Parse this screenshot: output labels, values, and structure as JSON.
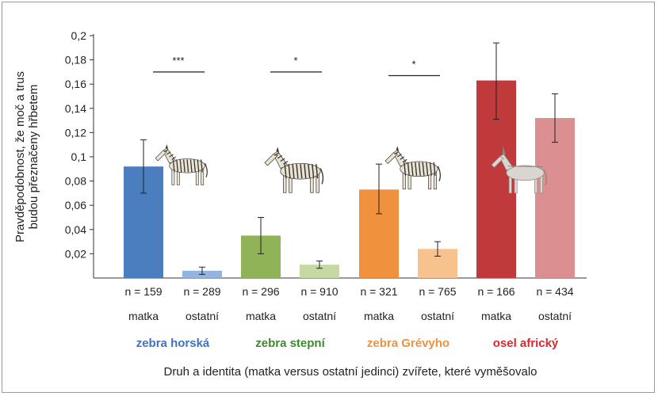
{
  "chart_data": {
    "type": "bar",
    "ylabel_line1": "Pravděpodobnost, že moč a trus",
    "ylabel_line2": "budou přeznačeny hřbetem",
    "xlabel": "Druh a identita (matka versus ostatní jedinci) zvířete, které vyměšovalo",
    "ylim": [
      0,
      0.2
    ],
    "yticks": [
      "0,02",
      "0,04",
      "0,06",
      "0,08",
      "0,1",
      "0,12",
      "0,14",
      "0,16",
      "0,18",
      "0,2"
    ],
    "ytick_values": [
      0.02,
      0.04,
      0.06,
      0.08,
      0.1,
      0.12,
      0.14,
      0.16,
      0.18,
      0.2
    ],
    "bars": [
      {
        "n": "n = 159",
        "label": "matka",
        "value": 0.092,
        "err_low": 0.07,
        "err_high": 0.114,
        "color": "#4a7ebf"
      },
      {
        "n": "n = 289",
        "label": "ostatní",
        "value": 0.006,
        "err_low": 0.003,
        "err_high": 0.009,
        "color": "#93b3e0"
      },
      {
        "n": "n = 296",
        "label": "matka",
        "value": 0.035,
        "err_low": 0.02,
        "err_high": 0.05,
        "color": "#8fb356"
      },
      {
        "n": "n = 910",
        "label": "ostatní",
        "value": 0.011,
        "err_low": 0.008,
        "err_high": 0.014,
        "color": "#c6d9a2"
      },
      {
        "n": "n = 321",
        "label": "matka",
        "value": 0.073,
        "err_low": 0.053,
        "err_high": 0.094,
        "color": "#f0913e"
      },
      {
        "n": "n = 765",
        "label": "ostatní",
        "value": 0.024,
        "err_low": 0.018,
        "err_high": 0.03,
        "color": "#f7c28e"
      },
      {
        "n": "n = 166",
        "label": "matka",
        "value": 0.163,
        "err_low": 0.131,
        "err_high": 0.194,
        "color": "#c0393b"
      },
      {
        "n": "n = 434",
        "label": "ostatní",
        "value": 0.132,
        "err_low": 0.112,
        "err_high": 0.152,
        "color": "#db8f91"
      }
    ],
    "groups": [
      {
        "name": "zebra horská",
        "color": "#3d72c4",
        "animal": "zebra"
      },
      {
        "name": "zebra stepní",
        "color": "#3b8a2e",
        "animal": "zebra"
      },
      {
        "name": "zebra Grévyho",
        "color": "#f0913e",
        "animal": "zebra"
      },
      {
        "name": "osel africký",
        "color": "#d9282f",
        "animal": "donkey"
      }
    ],
    "significance": [
      {
        "group": 0,
        "label": "***",
        "y": 0.17
      },
      {
        "group": 1,
        "label": "*",
        "y": 0.17
      },
      {
        "group": 2,
        "label": "*",
        "y": 0.167
      }
    ]
  }
}
